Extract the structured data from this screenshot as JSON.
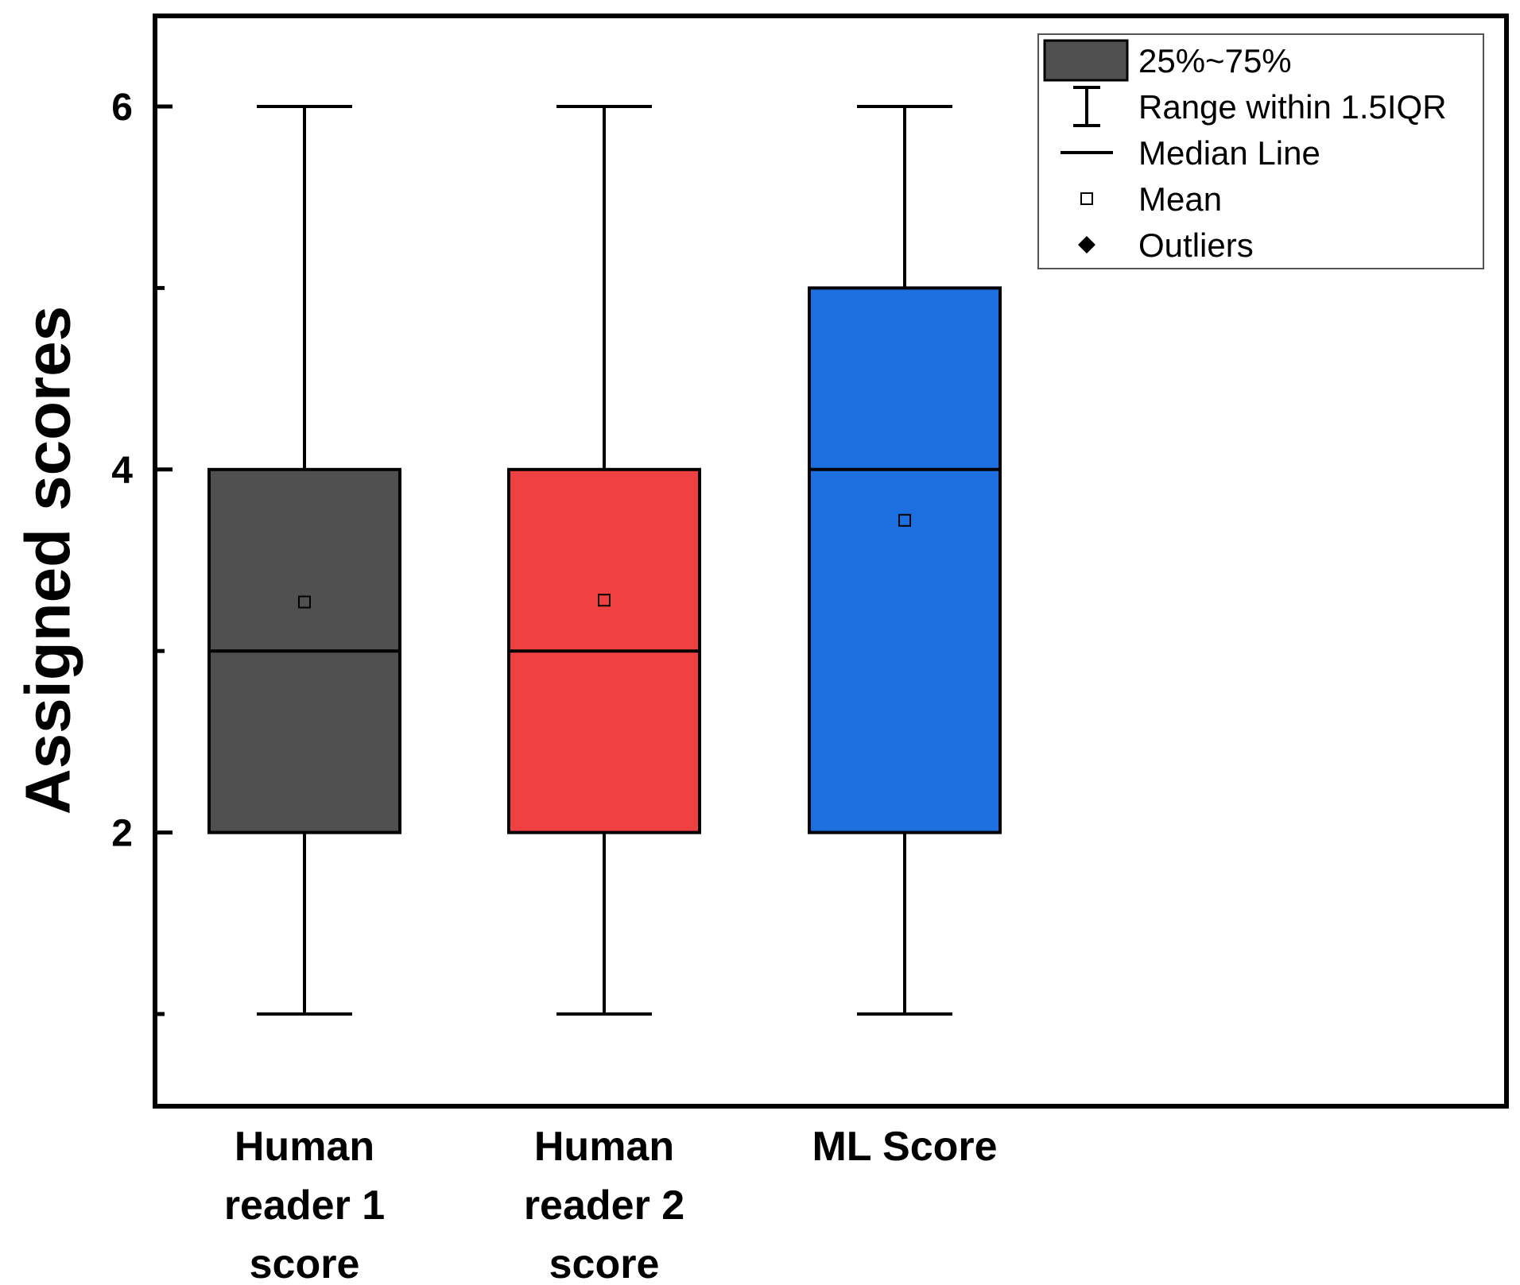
{
  "chart_data": {
    "type": "box",
    "ylabel": "Assigned scores",
    "ylim": [
      0.5,
      6.5
    ],
    "yticks": [
      {
        "value": 2,
        "label": "2"
      },
      {
        "value": 4,
        "label": "4"
      },
      {
        "value": 6,
        "label": "6"
      }
    ],
    "yminor_ticks": [
      1,
      3,
      5
    ],
    "categories": [
      {
        "lines": [
          "Human",
          "reader 1",
          "score"
        ]
      },
      {
        "lines": [
          "Human",
          "reader 2",
          "score"
        ]
      },
      {
        "lines": [
          "ML Score"
        ]
      }
    ],
    "series": [
      {
        "q1": 2,
        "median": 3,
        "q3": 4,
        "whisker_low": 1,
        "whisker_high": 6,
        "mean": 3.27,
        "color": "#505050"
      },
      {
        "q1": 2,
        "median": 3,
        "q3": 4,
        "whisker_low": 1,
        "whisker_high": 6,
        "mean": 3.28,
        "color": "#ef4042"
      },
      {
        "q1": 2,
        "median": 4,
        "q3": 5,
        "whisker_low": 1,
        "whisker_high": 6,
        "mean": 3.72,
        "color": "#1b6fdf"
      }
    ],
    "legend": {
      "position": "top-right",
      "items": [
        {
          "symbol": "box",
          "label": "25%~75%"
        },
        {
          "symbol": "whisker",
          "label": "Range within 1.5IQR"
        },
        {
          "symbol": "line",
          "label": "Median Line"
        },
        {
          "symbol": "square",
          "label": "Mean"
        },
        {
          "symbol": "diamond",
          "label": "Outliers"
        }
      ]
    }
  }
}
